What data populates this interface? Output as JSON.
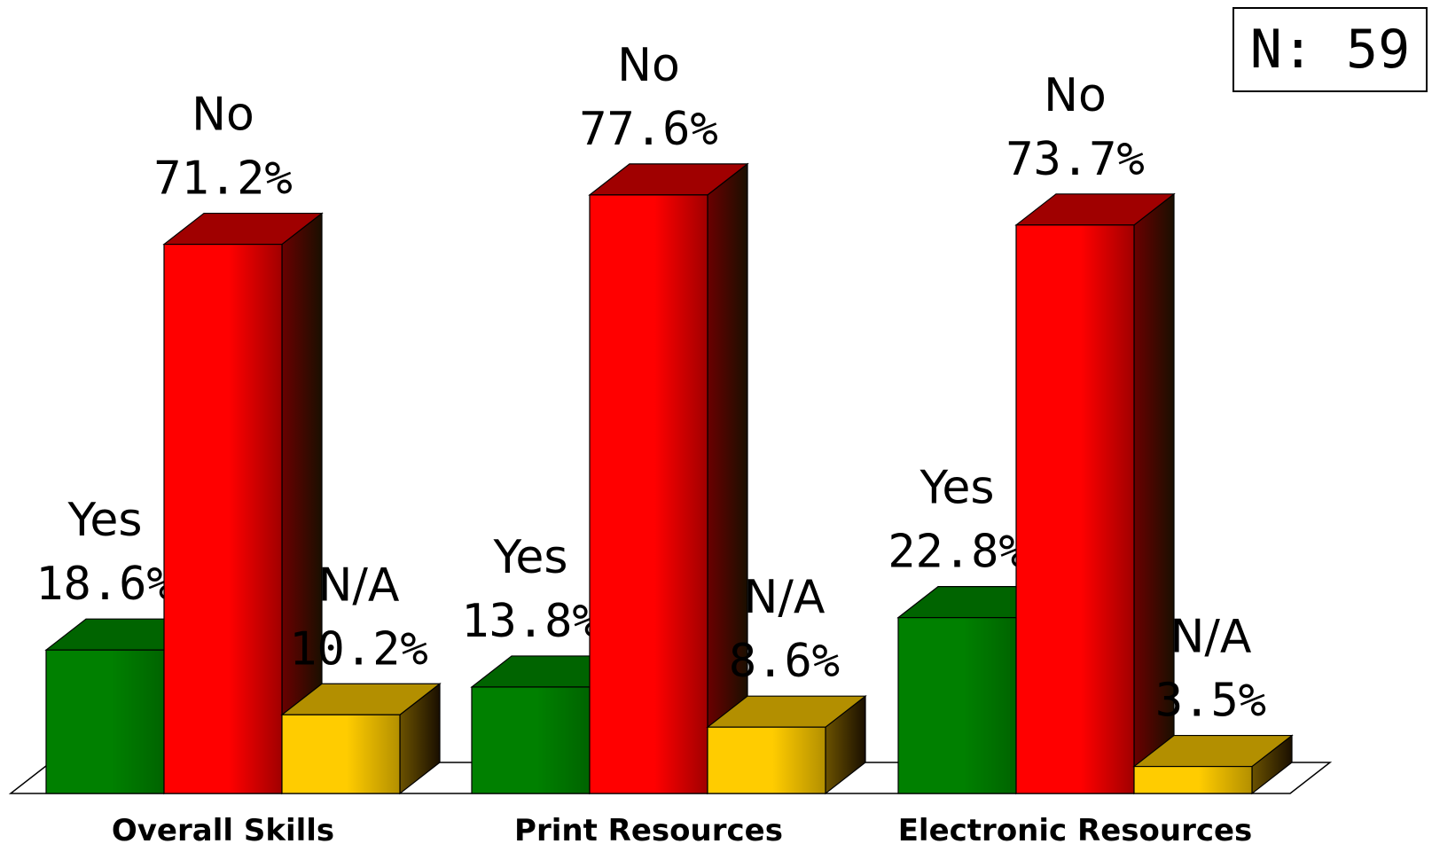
{
  "n_label": "N: 59",
  "chart_data": {
    "type": "bar",
    "categories": [
      "Overall Skills",
      "Print Resources",
      "Electronic Resources"
    ],
    "series": [
      {
        "name": "Yes",
        "values": [
          18.6,
          13.8,
          22.8
        ],
        "labels": [
          "18.6%",
          "13.8%",
          "22.8%"
        ],
        "color": "#008000",
        "side_color": "#004d00",
        "top_color": "#006400"
      },
      {
        "name": "No",
        "values": [
          71.2,
          77.6,
          73.7
        ],
        "labels": [
          "71.2%",
          "77.6%",
          "73.7%"
        ],
        "color": "#ff0000",
        "side_color": "#6a0000",
        "top_color": "#a00000"
      },
      {
        "name": "N/A",
        "values": [
          10.2,
          8.6,
          3.5
        ],
        "labels": [
          "10.2%",
          "8.6%",
          "3.5%"
        ],
        "color": "#ffcc00",
        "side_color": "#6b5200",
        "top_color": "#b38f00"
      }
    ],
    "style": "3d-clustered",
    "grid": false,
    "legend": "none"
  }
}
